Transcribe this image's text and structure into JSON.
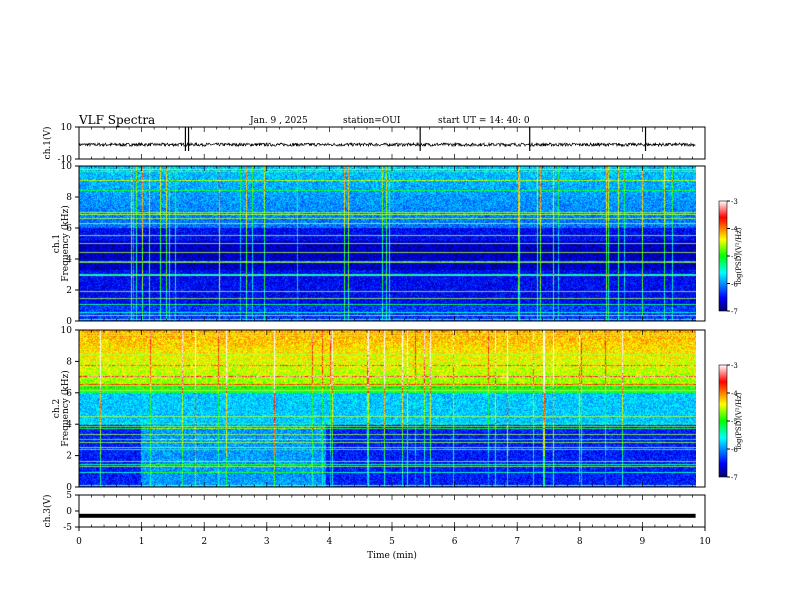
{
  "header": {
    "title": "VLF Spectra",
    "date": "Jan. 9 , 2025",
    "station": "station=OUI",
    "start": "start UT =  14: 40: 0"
  },
  "colorbar": {
    "label": "log(PSD)(V²/Hz)",
    "ticks": [
      -3,
      -4,
      -5,
      -6,
      -7
    ],
    "colors": [
      "#ffffff",
      "#ff0000",
      "#ffff00",
      "#00ff00",
      "#00ffff",
      "#0000ff",
      "#000066"
    ]
  },
  "chart_data": [
    {
      "type": "line",
      "name": "ch1-waveform",
      "ylabel": "ch.1(V)",
      "ylim": [
        -10,
        10
      ],
      "y_tick_labels": [
        "10",
        "-10"
      ],
      "baseline": -1,
      "noise_amplitude": 1,
      "spikes_min": [
        1.7,
        1.75,
        5.45,
        7.2,
        9.05
      ]
    },
    {
      "type": "heatmap",
      "name": "ch1-spectrogram",
      "ylabel": "Frequency (kHz)",
      "channel_label": "ch.1",
      "ylim": [
        0,
        10
      ],
      "y_tick_labels": [
        "0",
        "2",
        "4",
        "6",
        "8",
        "10"
      ],
      "description_levels": {
        "high_freq_band_khz": [
          6,
          10
        ],
        "low_freq_band_khz": [
          0,
          6
        ]
      }
    },
    {
      "type": "heatmap",
      "name": "ch2-spectrogram",
      "ylabel": "Frequency (kHz)",
      "channel_label": "ch.2",
      "ylim": [
        0,
        10
      ],
      "y_tick_labels": [
        "0",
        "2",
        "4",
        "6",
        "8",
        "10"
      ],
      "noise_segment_min": [
        1.0,
        4.0
      ]
    },
    {
      "type": "line",
      "name": "ch3-waveform",
      "ylabel": "ch.3(V)",
      "ylim": [
        -5,
        5
      ],
      "y_tick_labels": [
        "5",
        "0",
        "-5"
      ],
      "baseline": -1.5
    }
  ],
  "xaxis": {
    "xlabel": "Time (min)",
    "xlim": [
      0,
      10
    ],
    "tick_labels": [
      "0",
      "1",
      "2",
      "3",
      "4",
      "5",
      "6",
      "7",
      "8",
      "9",
      "10"
    ],
    "data_end_min": 9.85
  }
}
